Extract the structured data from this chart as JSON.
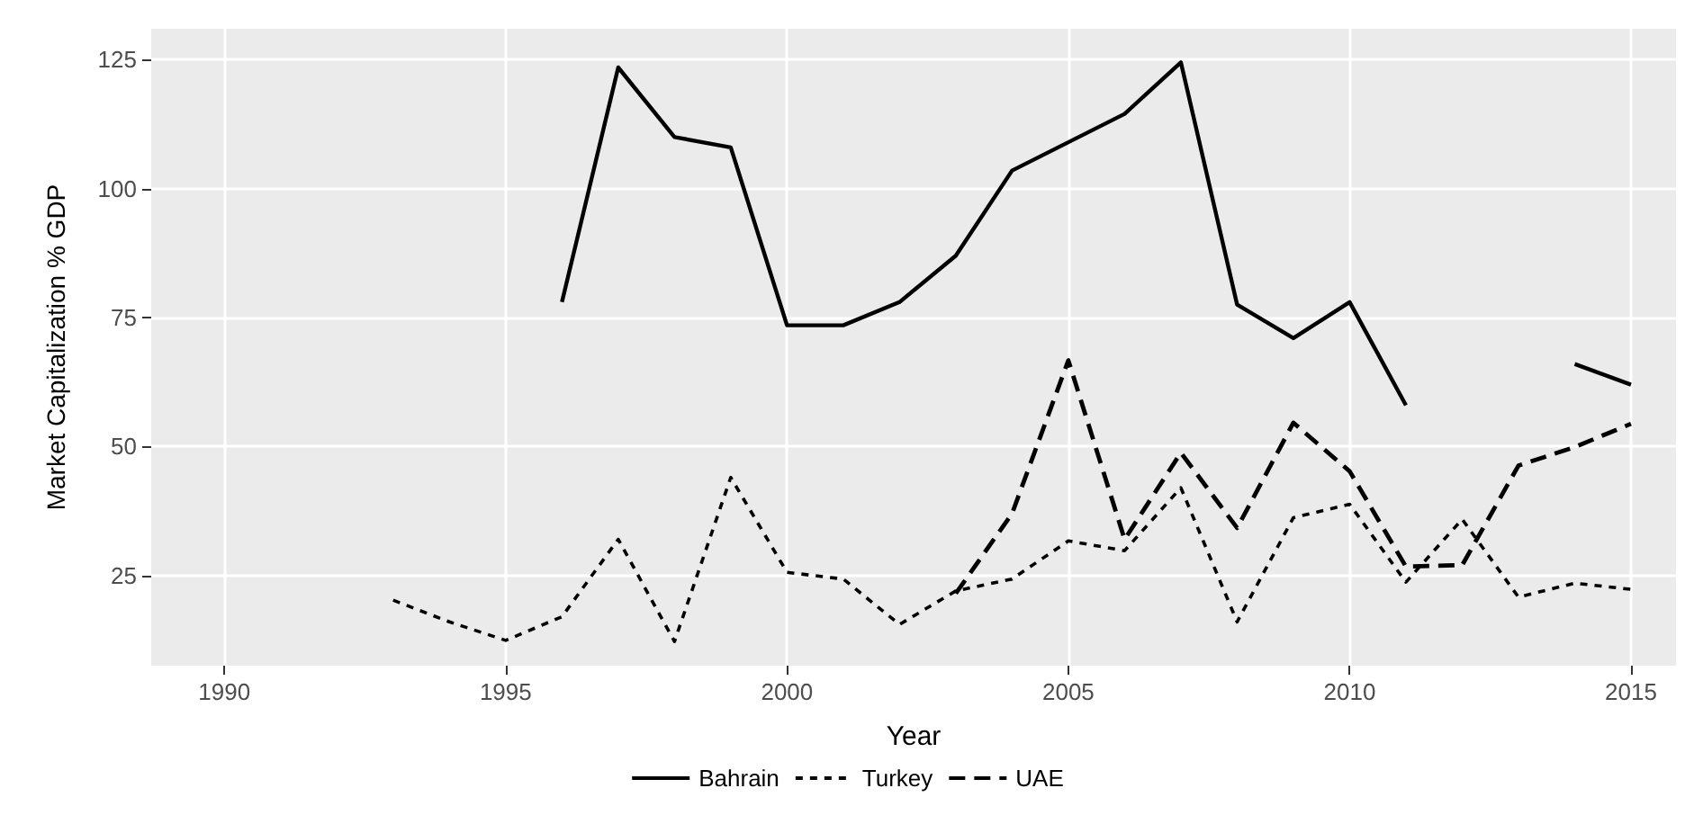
{
  "chart_data": {
    "type": "line",
    "xlabel": "Year",
    "ylabel": "Market Capitalization % GDP",
    "x": [
      1993,
      1994,
      1995,
      1996,
      1997,
      1998,
      1999,
      2000,
      2001,
      2002,
      2003,
      2004,
      2005,
      2006,
      2007,
      2008,
      2009,
      2010,
      2011,
      2012,
      2013,
      2014,
      2015
    ],
    "series": [
      {
        "name": "Bahrain",
        "color": "#000000",
        "line_style": "solid",
        "values": [
          null,
          null,
          null,
          78,
          123.5,
          110,
          108,
          73.5,
          73.5,
          78,
          87,
          103.5,
          109,
          114.5,
          124.5,
          77.5,
          71,
          78,
          58,
          null,
          null,
          66,
          62
        ]
      },
      {
        "name": "Turkey",
        "color": "#000000",
        "line_style": "dotted",
        "values": [
          20.2,
          16,
          12.4,
          17,
          32,
          12.2,
          44,
          25.6,
          24.3,
          15.5,
          22,
          24.3,
          31.7,
          29.8,
          42,
          16,
          36.2,
          38.8,
          23.7,
          35.9,
          20.8,
          23.5,
          22.3
        ]
      },
      {
        "name": "UAE",
        "color": "#000000",
        "line_style": "dashed",
        "values": [
          null,
          null,
          null,
          null,
          null,
          null,
          null,
          null,
          null,
          null,
          21.5,
          37,
          66.7,
          32,
          48.8,
          34.2,
          54.6,
          45.2,
          26.7,
          27,
          46.3,
          49.9,
          54.4
        ]
      }
    ],
    "xlim": [
      1988.7,
      2015.8
    ],
    "xticks": [
      1990,
      1995,
      2000,
      2005,
      2010,
      2015
    ],
    "ylim": [
      7.5,
      131
    ],
    "yticks": [
      25,
      50,
      75,
      100,
      125
    ],
    "grid": true,
    "legend": "bottom",
    "marker": "none"
  }
}
